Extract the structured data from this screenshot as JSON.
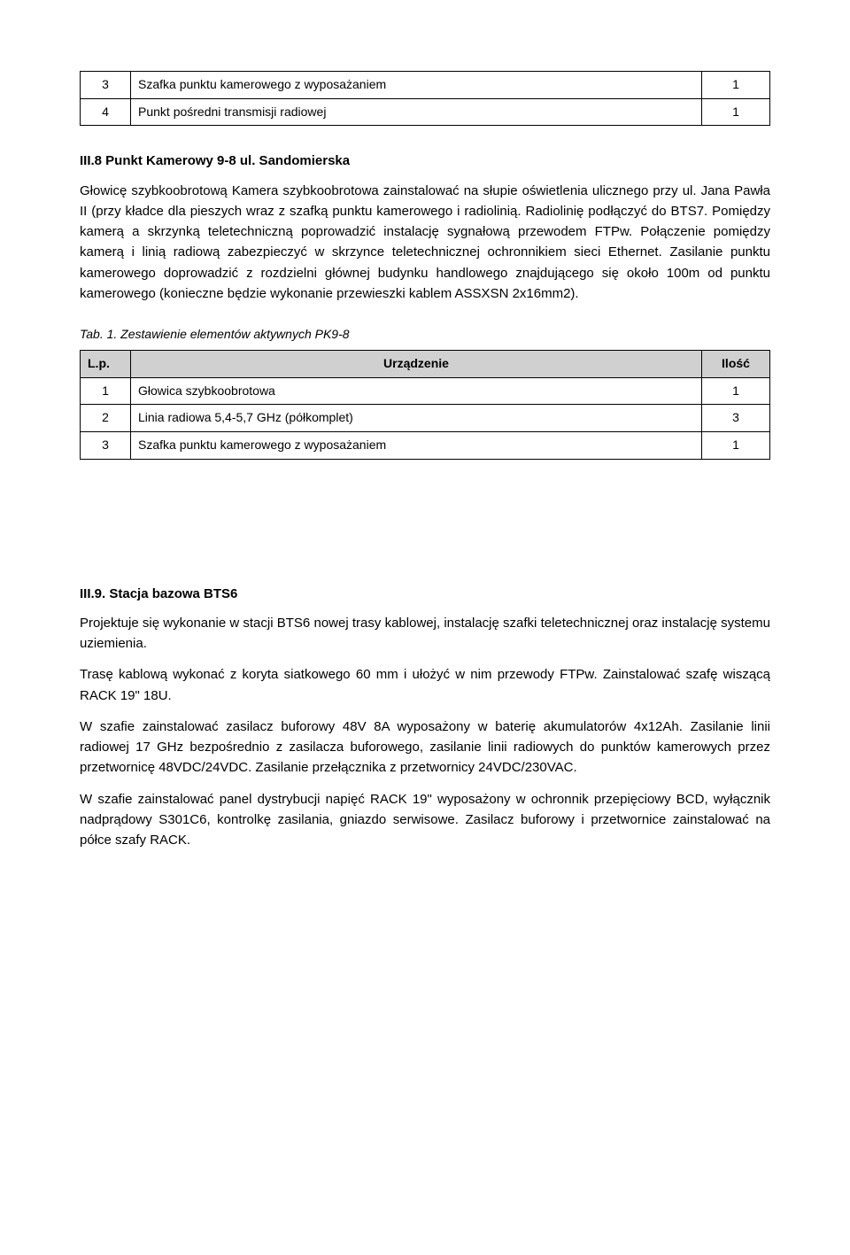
{
  "table1": {
    "rows": [
      {
        "n": "3",
        "name": "Szafka punktu kamerowego z wyposażaniem",
        "qty": "1"
      },
      {
        "n": "4",
        "name": "Punkt pośredni transmisji radiowej",
        "qty": "1"
      }
    ]
  },
  "section1": {
    "heading": "III.8 Punkt Kamerowy 9-8 ul. Sandomierska",
    "paragraph": "Głowicę szybkoobrotową Kamera szybkoobrotowa zainstalować na słupie oświetlenia ulicznego przy ul. Jana Pawła II (przy kładce dla pieszych wraz z szafką punktu kamerowego i radiolinią. Radiolinię podłączyć do BTS7. Pomiędzy kamerą a skrzynką teletechniczną poprowadzić instalację sygnałową przewodem FTPw. Połączenie pomiędzy kamerą i linią radiową zabezpieczyć w skrzynce teletechnicznej ochronnikiem sieci Ethernet. Zasilanie punktu kamerowego doprowadzić z rozdzielni głównej budynku handlowego znajdującego się około 100m od punktu kamerowego (konieczne będzie wykonanie przewieszki kablem ASSXSN 2x16mm2)."
  },
  "table2": {
    "caption": "Tab. 1. Zestawienie elementów aktywnych PK9-8",
    "header": {
      "lp": "L.p.",
      "urz": "Urządzenie",
      "il": "Ilość"
    },
    "rows": [
      {
        "n": "1",
        "name": "Głowica szybkoobrotowa",
        "qty": "1"
      },
      {
        "n": "2",
        "name": "Linia radiowa 5,4-5,7 GHz (półkomplet)",
        "qty": "3"
      },
      {
        "n": "3",
        "name": "Szafka punktu kamerowego z wyposażaniem",
        "qty": "1"
      }
    ]
  },
  "section2": {
    "heading": "III.9. Stacja bazowa BTS6",
    "p1": "Projektuje się wykonanie w stacji BTS6 nowej trasy kablowej, instalację szafki teletechnicznej oraz instalację systemu uziemienia.",
    "p2": "Trasę kablową wykonać z koryta siatkowego 60 mm i ułożyć w nim przewody FTPw. Zainstalować  szafę wiszącą RACK 19\" 18U.",
    "p3": "W szafie zainstalować zasilacz buforowy 48V 8A wyposażony w baterię akumulatorów 4x12Ah. Zasilanie linii radiowej 17 GHz bezpośrednio z zasilacza buforowego, zasilanie linii radiowych do punktów kamerowych przez przetwornicę 48VDC/24VDC. Zasilanie przełącznika z przetwornicy 24VDC/230VAC.",
    "p4": "W szafie zainstalować panel dystrybucji napięć RACK 19\" wyposażony w ochronnik przepięciowy BCD, wyłącznik nadprądowy S301C6, kontrolkę zasilania, gniazdo serwisowe. Zasilacz buforowy i przetwornice zainstalować na półce szafy RACK."
  }
}
